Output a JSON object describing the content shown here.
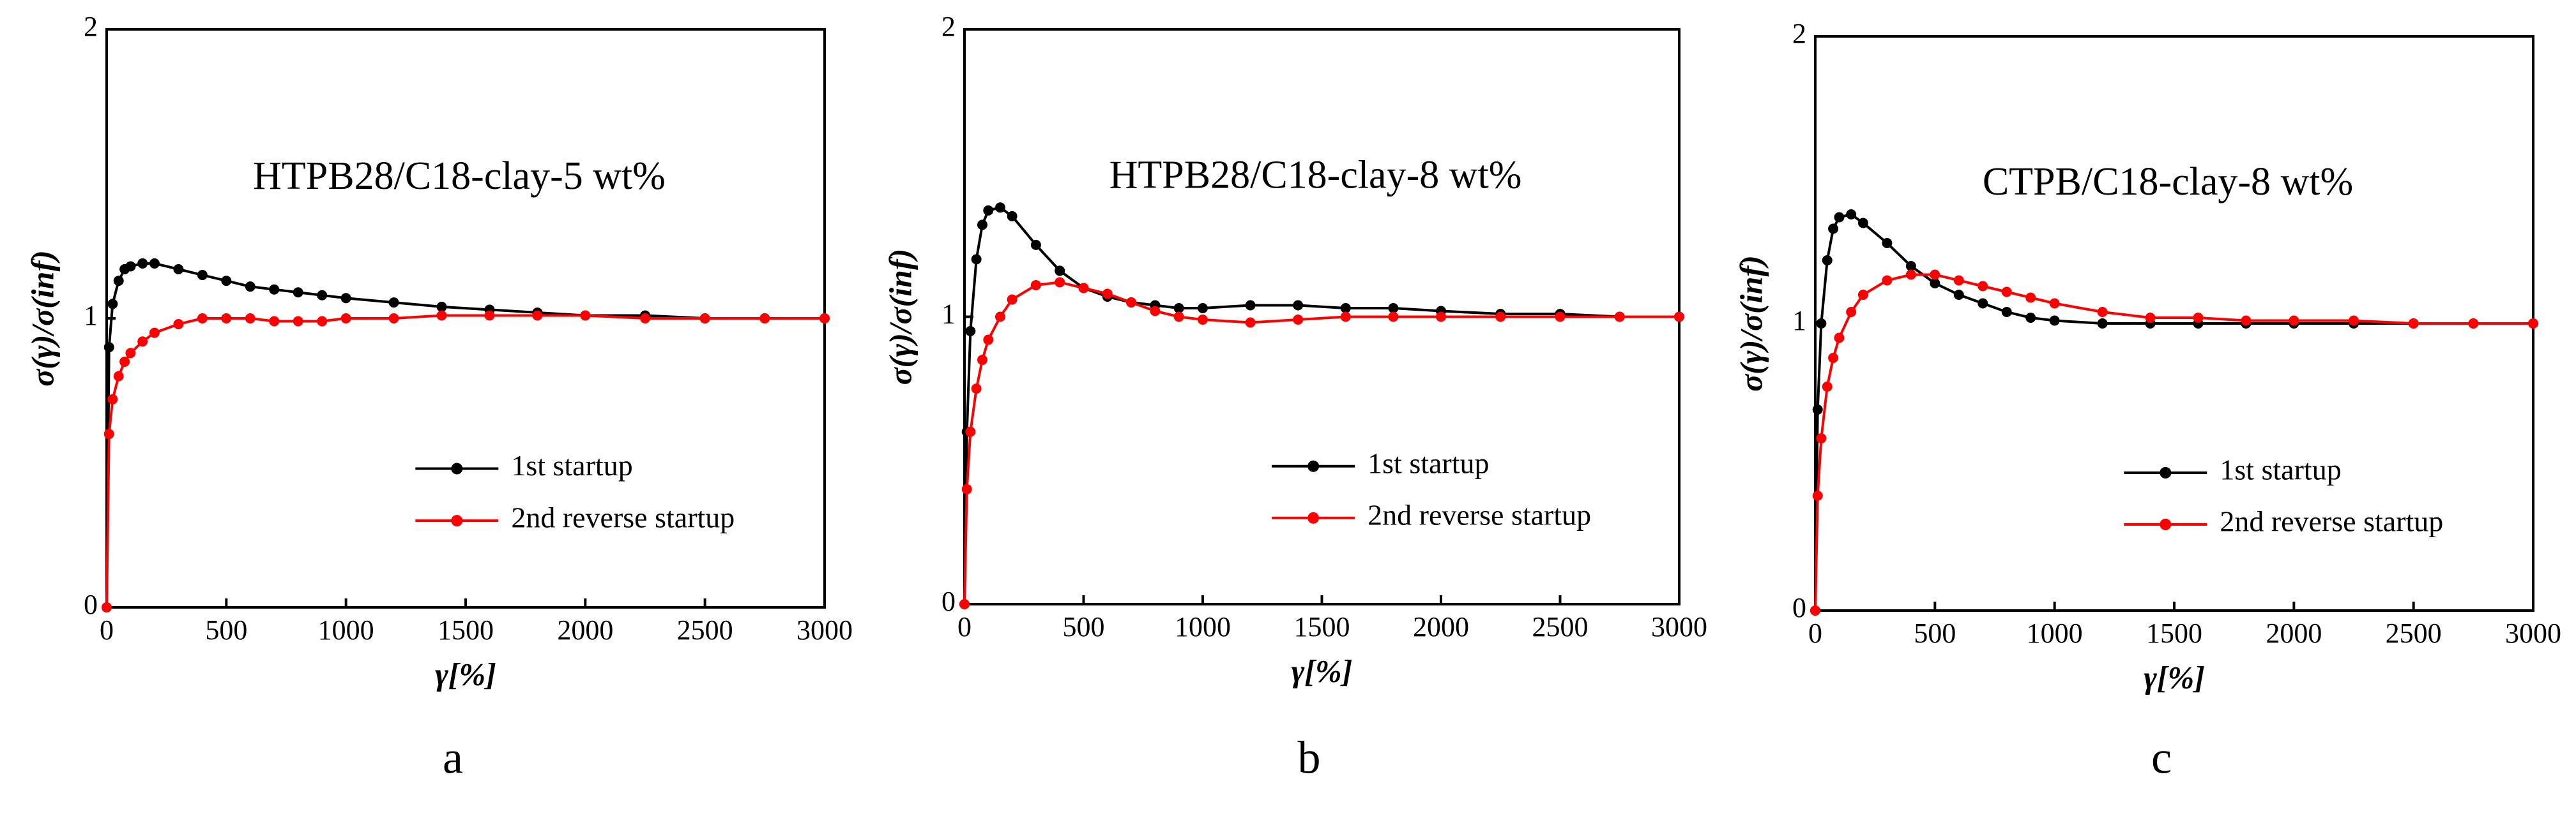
{
  "chart_data": [
    {
      "type": "line",
      "title": "HTPB28/C18-clay-5  wt%",
      "xlabel": "γ[%]",
      "ylabel": "σ(γ)/σ(inf)",
      "panel": "a",
      "x": [
        0,
        10,
        25,
        50,
        75,
        100,
        150,
        200,
        300,
        400,
        500,
        600,
        700,
        800,
        900,
        1000,
        1200,
        1400,
        1600,
        1800,
        2000,
        2250,
        2500,
        2750,
        3000
      ],
      "series": [
        {
          "name": "1st startup",
          "color": "#000000",
          "values": [
            0,
            0.9,
            1.05,
            1.13,
            1.17,
            1.18,
            1.19,
            1.19,
            1.17,
            1.15,
            1.13,
            1.11,
            1.1,
            1.09,
            1.08,
            1.07,
            1.055,
            1.04,
            1.03,
            1.02,
            1.01,
            1.01,
            1.0,
            1.0,
            1.0
          ]
        },
        {
          "name": "2nd reverse startup",
          "color": "#ff0000",
          "values": [
            0,
            0.6,
            0.72,
            0.8,
            0.85,
            0.88,
            0.92,
            0.95,
            0.98,
            1.0,
            1.0,
            1.0,
            0.99,
            0.99,
            0.99,
            1.0,
            1.0,
            1.01,
            1.01,
            1.01,
            1.01,
            1.0,
            1.0,
            1.0,
            1.0
          ]
        }
      ],
      "xlim": [
        0,
        3000
      ],
      "ylim": [
        0,
        2
      ],
      "xticks": [
        0,
        500,
        1000,
        1500,
        2000,
        2500,
        3000
      ],
      "yticks": [
        0,
        1,
        2
      ]
    },
    {
      "type": "line",
      "title": "HTPB28/C18-clay-8  wt%",
      "xlabel": "γ[%]",
      "ylabel": "σ(γ)/σ(inf)",
      "panel": "b",
      "x": [
        0,
        10,
        25,
        50,
        75,
        100,
        150,
        200,
        300,
        400,
        500,
        600,
        700,
        800,
        900,
        1000,
        1200,
        1400,
        1600,
        1800,
        2000,
        2250,
        2500,
        2750,
        3000
      ],
      "series": [
        {
          "name": "1st startup",
          "color": "#000000",
          "values": [
            0,
            0.6,
            0.95,
            1.2,
            1.32,
            1.37,
            1.38,
            1.35,
            1.25,
            1.16,
            1.1,
            1.07,
            1.05,
            1.04,
            1.03,
            1.03,
            1.04,
            1.04,
            1.03,
            1.03,
            1.02,
            1.01,
            1.01,
            1.0,
            1.0
          ]
        },
        {
          "name": "2nd reverse startup",
          "color": "#ff0000",
          "values": [
            0,
            0.4,
            0.6,
            0.75,
            0.85,
            0.92,
            1.0,
            1.06,
            1.11,
            1.12,
            1.1,
            1.08,
            1.05,
            1.02,
            1.0,
            0.99,
            0.98,
            0.99,
            1.0,
            1.0,
            1.0,
            1.0,
            1.0,
            1.0,
            1.0
          ]
        }
      ],
      "xlim": [
        0,
        3000
      ],
      "ylim": [
        0,
        2
      ],
      "xticks": [
        0,
        500,
        1000,
        1500,
        2000,
        2500,
        3000
      ],
      "yticks": [
        0,
        1,
        2
      ]
    },
    {
      "type": "line",
      "title": "CTPB/C18-clay-8  wt%",
      "xlabel": "γ[%]",
      "ylabel": "σ(γ)/σ(inf)",
      "panel": "c",
      "x": [
        0,
        10,
        25,
        50,
        75,
        100,
        150,
        200,
        300,
        400,
        500,
        600,
        700,
        800,
        900,
        1000,
        1200,
        1400,
        1600,
        1800,
        2000,
        2250,
        2500,
        2750,
        3000
      ],
      "series": [
        {
          "name": "1st startup",
          "color": "#000000",
          "values": [
            0,
            0.7,
            1.0,
            1.22,
            1.33,
            1.37,
            1.38,
            1.35,
            1.28,
            1.2,
            1.14,
            1.1,
            1.07,
            1.04,
            1.02,
            1.01,
            1.0,
            1.0,
            1.0,
            1.0,
            1.0,
            1.0,
            1.0,
            1.0,
            1.0
          ]
        },
        {
          "name": "2nd reverse startup",
          "color": "#ff0000",
          "values": [
            0,
            0.4,
            0.6,
            0.78,
            0.88,
            0.95,
            1.04,
            1.1,
            1.15,
            1.17,
            1.17,
            1.15,
            1.13,
            1.11,
            1.09,
            1.07,
            1.04,
            1.02,
            1.02,
            1.01,
            1.01,
            1.01,
            1.0,
            1.0,
            1.0
          ]
        }
      ],
      "xlim": [
        0,
        3000
      ],
      "ylim": [
        0,
        2
      ],
      "xticks": [
        0,
        500,
        1000,
        1500,
        2000,
        2500,
        3000
      ],
      "yticks": [
        0,
        1,
        2
      ]
    }
  ]
}
